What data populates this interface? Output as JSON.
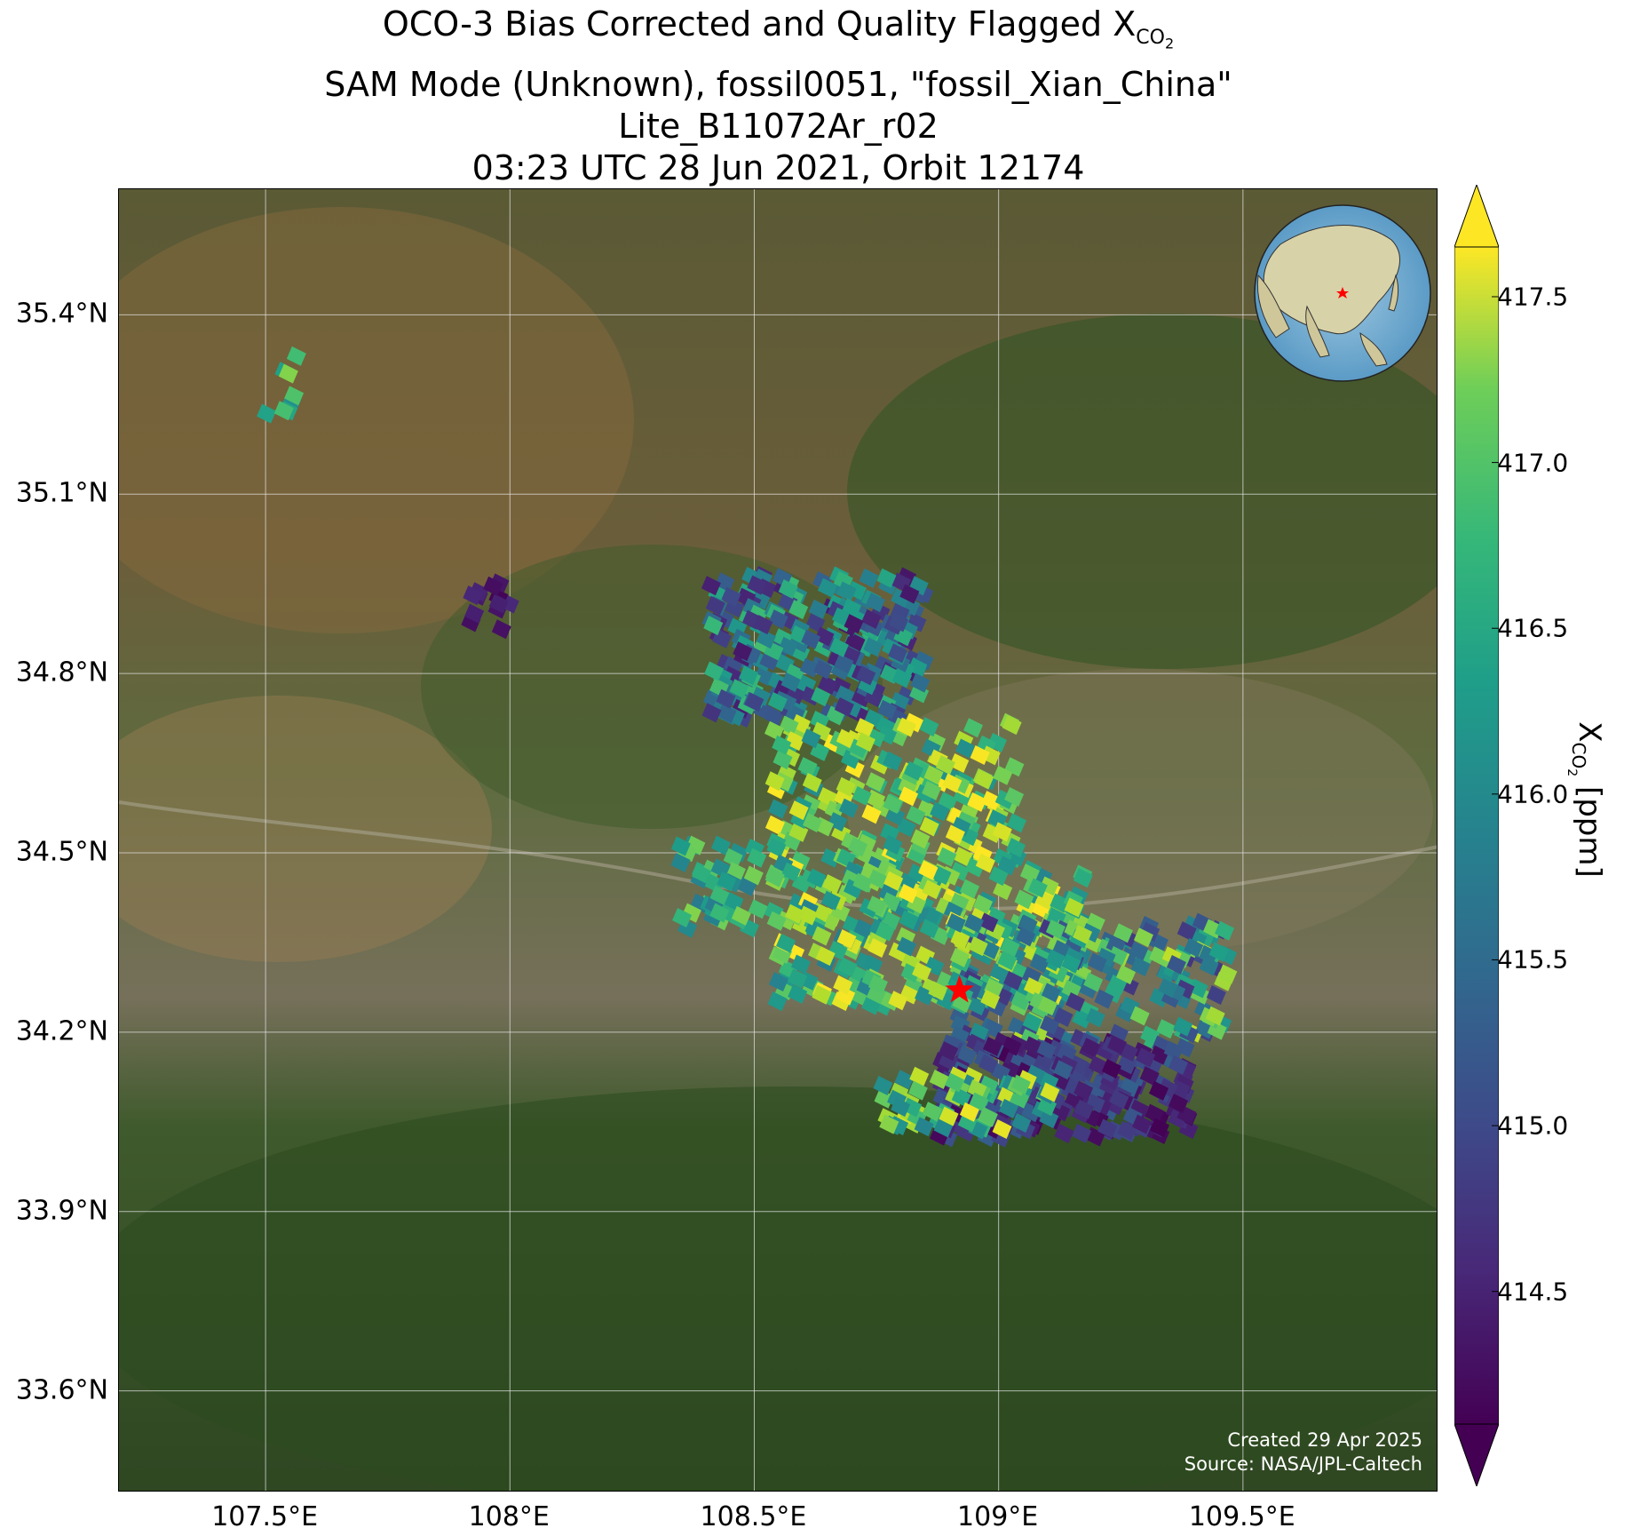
{
  "title": {
    "line1_prefix": "OCO-3 Bias Corrected and Quality Flagged X",
    "line1_sub": "CO",
    "line1_subsub": "2",
    "line2": "SAM Mode (Unknown), fossil0051, \"fossil_Xian_China\"",
    "line3": "Lite_B11072Ar_r02",
    "line4": "03:23 UTC 28 Jun 2021, Orbit 12174"
  },
  "axes": {
    "lat_ticks": [
      "35.4°N",
      "35.1°N",
      "34.8°N",
      "34.5°N",
      "34.2°N",
      "33.9°N",
      "33.6°N"
    ],
    "lon_ticks": [
      "107.5°E",
      "108°E",
      "108.5°E",
      "109°E",
      "109.5°E"
    ],
    "lat_values": [
      35.4,
      35.1,
      34.8,
      34.5,
      34.2,
      33.9,
      33.6
    ],
    "lon_values": [
      107.5,
      108.0,
      108.5,
      109.0,
      109.5
    ],
    "lon_range": [
      107.2,
      109.9
    ],
    "lat_range": [
      33.43,
      35.61
    ],
    "grid": true
  },
  "target": {
    "lon": 108.92,
    "lat": 34.27,
    "marker": "red-star"
  },
  "colorbar": {
    "label_prefix": "X",
    "label_sub": "CO",
    "label_subsub": "2",
    "label_suffix": " [ppm]",
    "ticks": [
      "417.5",
      "417.0",
      "416.5",
      "416.0",
      "415.5",
      "415.0",
      "414.5"
    ],
    "tick_values": [
      417.5,
      417.0,
      416.5,
      416.0,
      415.5,
      415.0,
      414.5
    ],
    "vmin": 414.1,
    "vmax": 417.65,
    "colormap": "viridis",
    "extend": "both"
  },
  "credits": {
    "line1": "Created 29 Apr 2025",
    "line2": "Source: NASA/JPL-Caltech"
  },
  "inset_globe": {
    "marker": "red-star",
    "region": "East Asia"
  }
}
